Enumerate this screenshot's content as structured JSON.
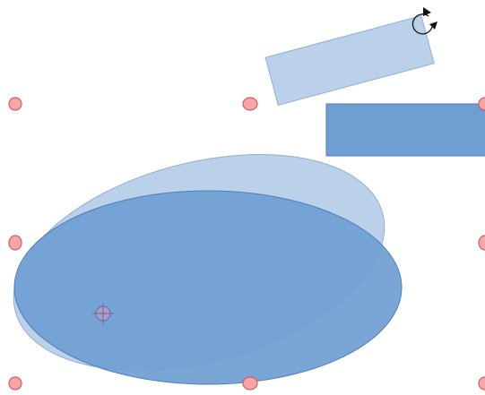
{
  "canvas": {
    "background_color": "#ffffff"
  },
  "shapes": {
    "rotated_rectangle_preview": {
      "color": "#b7cde8",
      "rotation_deg": -15
    },
    "rectangle": {
      "color": "#6f9ed2"
    },
    "ellipse_preview": {
      "color": "#b7cde8",
      "rotation_deg": -15
    },
    "ellipse": {
      "color": "#6f9ed2"
    }
  },
  "selection": {
    "handle_color": "#f6a6a6",
    "handle_border_color": "#d85c5c",
    "rotation_cursor_icon": "rotate-arrow-icon",
    "pivot_icon": "rotation-pivot-icon"
  }
}
